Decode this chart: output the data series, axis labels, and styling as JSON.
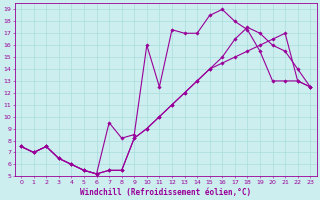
{
  "xlabel": "Windchill (Refroidissement éolien,°C)",
  "xlim": [
    -0.5,
    23.5
  ],
  "ylim": [
    5,
    19.5
  ],
  "xticks": [
    0,
    1,
    2,
    3,
    4,
    5,
    6,
    7,
    8,
    9,
    10,
    11,
    12,
    13,
    14,
    15,
    16,
    17,
    18,
    19,
    20,
    21,
    22,
    23
  ],
  "yticks": [
    5,
    6,
    7,
    8,
    9,
    10,
    11,
    12,
    13,
    14,
    15,
    16,
    17,
    18,
    19
  ],
  "line_color": "#990099",
  "bg_color": "#cceeee",
  "grid_color": "#aadddd",
  "curve1_x": [
    0,
    1,
    2,
    3,
    4,
    5,
    6,
    7,
    8,
    9,
    10,
    11,
    12,
    13,
    14,
    15,
    16,
    17,
    18,
    19,
    20,
    21,
    22,
    23
  ],
  "curve1_y": [
    7.5,
    7.0,
    7.5,
    6.5,
    6.0,
    5.5,
    5.2,
    9.5,
    8.2,
    8.5,
    16.0,
    12.5,
    17.3,
    17.0,
    17.0,
    18.5,
    19.0,
    18.0,
    17.3,
    15.5,
    13.0,
    13.0,
    13.0,
    12.5
  ],
  "curve2_x": [
    0,
    1,
    2,
    3,
    4,
    5,
    6,
    7,
    8,
    9,
    10,
    11,
    12,
    13,
    14,
    15,
    16,
    17,
    18,
    19,
    20,
    21,
    22,
    23
  ],
  "curve2_y": [
    7.5,
    7.0,
    7.5,
    6.5,
    6.0,
    5.5,
    5.2,
    5.5,
    5.5,
    8.2,
    9.0,
    10.0,
    11.0,
    12.0,
    13.0,
    14.0,
    15.0,
    16.5,
    17.5,
    17.0,
    16.0,
    15.5,
    14.0,
    12.5
  ],
  "curve3_x": [
    0,
    1,
    2,
    3,
    4,
    5,
    6,
    7,
    8,
    9,
    10,
    11,
    12,
    13,
    14,
    15,
    16,
    17,
    18,
    19,
    20,
    21,
    22,
    23
  ],
  "curve3_y": [
    7.5,
    7.0,
    7.5,
    6.5,
    6.0,
    5.5,
    5.2,
    5.5,
    5.5,
    8.2,
    9.0,
    10.0,
    11.0,
    12.0,
    13.0,
    14.0,
    14.5,
    15.0,
    15.5,
    16.0,
    16.5,
    17.0,
    13.0,
    12.5
  ],
  "marker": "D",
  "markersize": 1.8,
  "linewidth": 0.8,
  "tick_fontsize": 4.5,
  "xlabel_fontsize": 5.5
}
